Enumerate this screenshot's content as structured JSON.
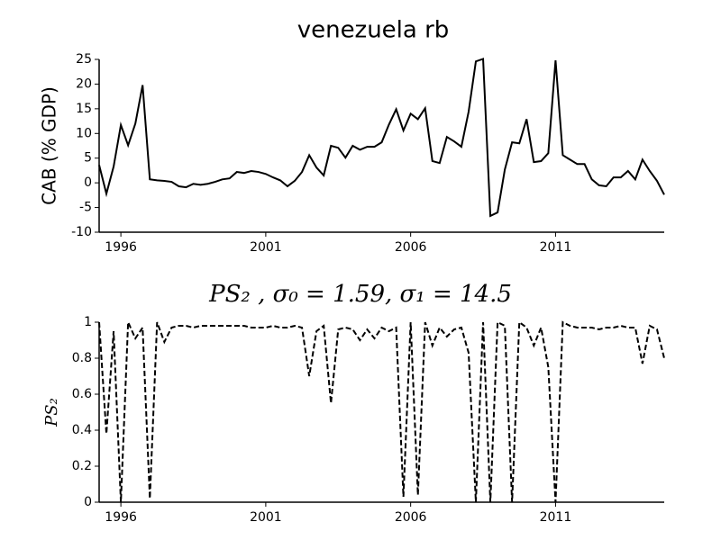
{
  "chart_data": [
    {
      "type": "line",
      "title": "venezuela rb",
      "ylabel": "CAB (% GDP)",
      "x": [
        1995.25,
        1995.5,
        1995.75,
        1996,
        1996.25,
        1996.5,
        1996.75,
        1997,
        1997.25,
        1997.5,
        1997.75,
        1998,
        1998.25,
        1998.5,
        1998.75,
        1999,
        1999.25,
        1999.5,
        1999.75,
        2000,
        2000.25,
        2000.5,
        2000.75,
        2001,
        2001.25,
        2001.5,
        2001.75,
        2002,
        2002.25,
        2002.5,
        2002.75,
        2003,
        2003.25,
        2003.5,
        2003.75,
        2004,
        2004.25,
        2004.5,
        2004.75,
        2005,
        2005.25,
        2005.5,
        2005.75,
        2006,
        2006.25,
        2006.5,
        2006.75,
        2007,
        2007.25,
        2007.5,
        2007.75,
        2008,
        2008.25,
        2008.5,
        2008.75,
        2009,
        2009.25,
        2009.5,
        2009.75,
        2010,
        2010.25,
        2010.5,
        2010.75,
        2011,
        2011.25,
        2011.5,
        2011.75,
        2012,
        2012.25,
        2012.5,
        2012.75,
        2013,
        2013.25,
        2013.5,
        2013.75,
        2014,
        2014.25,
        2014.5,
        2014.75
      ],
      "values": [
        3.6,
        -2.2,
        3.3,
        11.7,
        7.6,
        12,
        19.8,
        0.7,
        0.5,
        0.4,
        0.2,
        -0.7,
        -0.9,
        -0.2,
        -0.4,
        -0.2,
        0.2,
        0.7,
        0.9,
        2.2,
        2.0,
        2.4,
        2.2,
        1.8,
        1.1,
        0.5,
        -0.7,
        0.4,
        2.2,
        5.6,
        3.1,
        1.5,
        7.5,
        7.1,
        5.1,
        7.5,
        6.7,
        7.3,
        7.3,
        8.2,
        11.8,
        14.9,
        10.6,
        14,
        12.9,
        15.1,
        4.4,
        4,
        9.3,
        8.4,
        7.3,
        14.4,
        24.6,
        25.1,
        -6.7,
        -6,
        2.7,
        8.2,
        8,
        12.9,
        4.2,
        4.4,
        6,
        24.8,
        5.6,
        4.7,
        3.8,
        3.8,
        0.7,
        -0.5,
        -0.7,
        1.1,
        1.1,
        2.4,
        0.7,
        4.7,
        2.4,
        0.4,
        -2.4
      ],
      "color": "#000000",
      "linestyle": "solid",
      "xlim": [
        1995.25,
        2014.75
      ],
      "xticks": [
        1996,
        2001,
        2006,
        2011
      ],
      "ylim": [
        -10,
        25
      ],
      "yticks": [
        -10,
        -5,
        0,
        5,
        10,
        15,
        20,
        25
      ]
    },
    {
      "type": "line",
      "title": "PS₂ , σ₀ = 1.59, σ₁ = 14.5",
      "ylabel": "PS₂",
      "x": [
        1995.25,
        1995.5,
        1995.75,
        1996,
        1996.25,
        1996.5,
        1996.75,
        1997,
        1997.25,
        1997.5,
        1997.75,
        1998,
        1998.25,
        1998.5,
        1998.75,
        1999,
        1999.25,
        1999.5,
        1999.75,
        2000,
        2000.25,
        2000.5,
        2000.75,
        2001,
        2001.25,
        2001.5,
        2001.75,
        2002,
        2002.25,
        2002.5,
        2002.75,
        2003,
        2003.25,
        2003.5,
        2003.75,
        2004,
        2004.25,
        2004.5,
        2004.75,
        2005,
        2005.25,
        2005.5,
        2005.75,
        2006,
        2006.25,
        2006.5,
        2006.75,
        2007,
        2007.25,
        2007.5,
        2007.75,
        2008,
        2008.25,
        2008.5,
        2008.75,
        2009,
        2009.25,
        2009.5,
        2009.75,
        2010,
        2010.25,
        2010.5,
        2010.75,
        2011,
        2011.25,
        2011.5,
        2011.75,
        2012,
        2012.25,
        2012.5,
        2012.75,
        2013,
        2013.25,
        2013.5,
        2013.75,
        2014,
        2014.25,
        2014.5,
        2014.75
      ],
      "values": [
        1.0,
        0.38,
        0.95,
        0.0,
        1.0,
        0.91,
        0.97,
        0.02,
        1.0,
        0.89,
        0.97,
        0.98,
        0.98,
        0.97,
        0.98,
        0.98,
        0.98,
        0.98,
        0.98,
        0.98,
        0.98,
        0.97,
        0.97,
        0.97,
        0.98,
        0.97,
        0.97,
        0.98,
        0.97,
        0.7,
        0.95,
        0.98,
        0.55,
        0.96,
        0.97,
        0.96,
        0.9,
        0.96,
        0.91,
        0.97,
        0.95,
        0.97,
        0.03,
        1.0,
        0.04,
        1.0,
        0.87,
        0.97,
        0.92,
        0.96,
        0.97,
        0.83,
        0.0,
        1.0,
        0.0,
        1.0,
        0.98,
        0.0,
        1.0,
        0.97,
        0.87,
        0.97,
        0.75,
        0.0,
        1.0,
        0.98,
        0.97,
        0.97,
        0.97,
        0.96,
        0.97,
        0.97,
        0.98,
        0.97,
        0.97,
        0.77,
        0.98,
        0.96,
        0.8
      ],
      "color": "#000000",
      "linestyle": "dashed",
      "xlim": [
        1995.25,
        2014.75
      ],
      "xticks": [
        1996,
        2001,
        2006,
        2011
      ],
      "ylim": [
        0,
        1
      ],
      "yticks": [
        0,
        0.2,
        0.4,
        0.6,
        0.8,
        1
      ]
    }
  ]
}
